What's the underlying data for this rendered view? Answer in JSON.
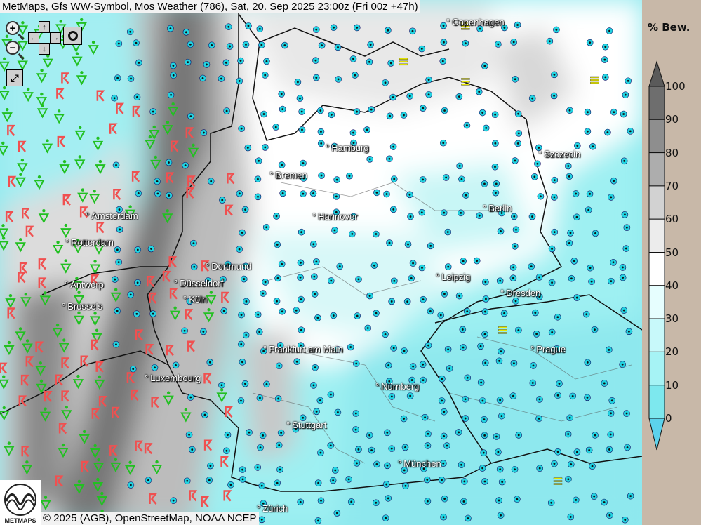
{
  "header": {
    "title": "MetMaps, Gfs WW-Symbol, Mos Weather (786), Sat, 20. Sep 2025 23:00z (Fri 00z +47h)"
  },
  "controls": {
    "zoom_in": "+",
    "zoom_out": "−",
    "pan_up": "↑",
    "pan_down": "↓",
    "pan_left": "←",
    "pan_right": "→",
    "camera_icon": "camera-icon",
    "fullscreen_icon": "fullscreen-icon"
  },
  "cities": [
    "Copenhagen",
    "Hamburg",
    "Szczecin",
    "Bremen",
    "Berlin",
    "Amsterdam",
    "Hannover",
    "Rotterdam",
    "Dortmund",
    "Leipzig",
    "Antwerp",
    "Düsseldorf",
    "Dresden",
    "Brussels",
    "Köln",
    "Frankfurt am Main",
    "Prague",
    "Luxembourg",
    "Nürnberg",
    "Stuttgart",
    "München",
    "Zürich"
  ],
  "legend": {
    "title": "% Bew.",
    "labels": [
      "100",
      "90",
      "80",
      "70",
      "60",
      "50",
      "40",
      "30",
      "20",
      "10",
      "0"
    ],
    "colors": [
      "#6e6e6e",
      "#8e8e8e",
      "#adadad",
      "#d2d2d2",
      "#ececec",
      "#ffffff",
      "#e6fefe",
      "#c8f9fa",
      "#a6f3f5",
      "#7de8ee"
    ],
    "over_color": "#5a5a5a",
    "under_color": "#5cd2ec"
  },
  "symbol_colors": {
    "drizzle": "#22d3e0",
    "thunderstorm": "#f05050",
    "shower": "#22c022",
    "fog": "#e8e800"
  },
  "footer": {
    "copyright": "© 2025 (AGB), OpenStreetMap, NOAA NCEP",
    "logo_text": "METMAPS"
  }
}
